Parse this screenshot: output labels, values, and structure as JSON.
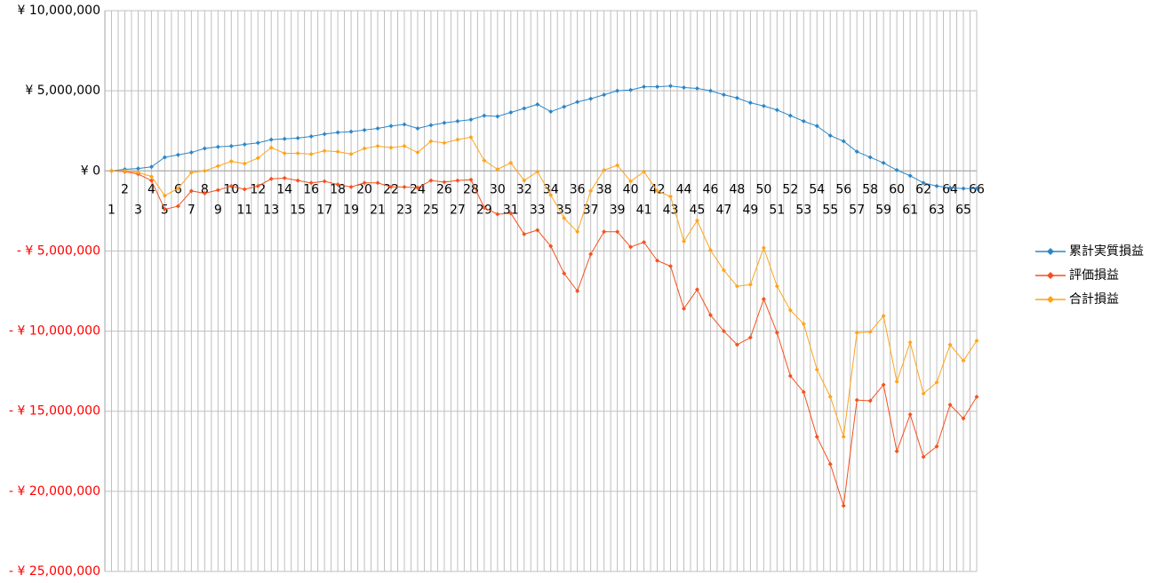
{
  "chart_data": {
    "type": "line",
    "categories": [
      "1",
      "2",
      "3",
      "4",
      "5",
      "6",
      "7",
      "8",
      "9",
      "10",
      "11",
      "12",
      "13",
      "14",
      "15",
      "16",
      "17",
      "18",
      "19",
      "20",
      "21",
      "22",
      "23",
      "24",
      "25",
      "26",
      "27",
      "28",
      "29",
      "30",
      "31",
      "32",
      "33",
      "34",
      "35",
      "36",
      "37",
      "38",
      "39",
      "40",
      "41",
      "42",
      "43",
      "44",
      "45",
      "46",
      "47",
      "48",
      "49",
      "50",
      "51",
      "52",
      "53",
      "54",
      "55",
      "56",
      "57",
      "58",
      "59",
      "60",
      "61",
      "62",
      "63",
      "64",
      "65",
      "66"
    ],
    "series": [
      {
        "name": "累計実質損益",
        "color": "#2a86c8",
        "values": [
          0,
          100000,
          150000,
          250000,
          850000,
          1000000,
          1150000,
          1400000,
          1500000,
          1550000,
          1650000,
          1750000,
          1950000,
          2000000,
          2050000,
          2150000,
          2300000,
          2400000,
          2450000,
          2550000,
          2650000,
          2800000,
          2900000,
          2650000,
          2850000,
          3000000,
          3100000,
          3200000,
          3450000,
          3400000,
          3650000,
          3900000,
          4150000,
          3700000,
          4000000,
          4300000,
          4500000,
          4750000,
          5000000,
          5050000,
          5250000,
          5250000,
          5300000,
          5200000,
          5150000,
          5000000,
          4750000,
          4550000,
          4250000,
          4050000,
          3800000,
          3450000,
          3100000,
          2800000,
          2200000,
          1850000,
          1200000,
          850000,
          500000,
          50000,
          -300000,
          -750000,
          -950000,
          -1050000,
          -1100000,
          -1100000
        ]
      },
      {
        "name": "評価損益",
        "color": "#f4511e",
        "values": [
          0,
          -50000,
          -200000,
          -600000,
          -2400000,
          -2200000,
          -1250000,
          -1400000,
          -1200000,
          -950000,
          -1150000,
          -950000,
          -500000,
          -450000,
          -600000,
          -750000,
          -650000,
          -850000,
          -1000000,
          -750000,
          -750000,
          -1000000,
          -1000000,
          -1050000,
          -600000,
          -700000,
          -600000,
          -550000,
          -2300000,
          -2700000,
          -2650000,
          -3950000,
          -3700000,
          -4700000,
          -6400000,
          -7500000,
          -5200000,
          -3800000,
          -3800000,
          -4750000,
          -4450000,
          -5600000,
          -5950000,
          -8600000,
          -7400000,
          -9000000,
          -10000000,
          -10850000,
          -10400000,
          -8000000,
          -10100000,
          -12800000,
          -13800000,
          -16600000,
          -18300000,
          -20900000,
          -14300000,
          -14350000,
          -13350000,
          -17500000,
          -15200000,
          -17850000,
          -17200000,
          -14600000,
          -15450000,
          -14100000
        ]
      },
      {
        "name": "合計損益",
        "color": "#ffa31a",
        "values": [
          0,
          0,
          -100000,
          -350000,
          -1550000,
          -1100000,
          -100000,
          0,
          300000,
          600000,
          450000,
          800000,
          1450000,
          1100000,
          1100000,
          1050000,
          1250000,
          1200000,
          1050000,
          1400000,
          1550000,
          1450000,
          1550000,
          1150000,
          1850000,
          1750000,
          1950000,
          2100000,
          650000,
          100000,
          500000,
          -600000,
          -50000,
          -1500000,
          -2950000,
          -3800000,
          -1250000,
          50000,
          350000,
          -650000,
          -50000,
          -1250000,
          -1600000,
          -4400000,
          -3100000,
          -4950000,
          -6200000,
          -7200000,
          -7100000,
          -4800000,
          -7200000,
          -8700000,
          -9550000,
          -12400000,
          -14100000,
          -16600000,
          -10100000,
          -10050000,
          -9050000,
          -13150000,
          -10700000,
          -13900000,
          -13200000,
          -10850000,
          -11850000,
          -10600000
        ]
      }
    ],
    "ylim": [
      -25000000,
      10000000
    ],
    "yticks": [
      {
        "value": -25000000,
        "label": "- ¥ 25,000,000"
      },
      {
        "value": -20000000,
        "label": "- ¥ 20,000,000"
      },
      {
        "value": -15000000,
        "label": "- ¥ 15,000,000"
      },
      {
        "value": -10000000,
        "label": "- ¥ 10,000,000"
      },
      {
        "value": -5000000,
        "label": "- ¥ 5,000,000"
      },
      {
        "value": 0,
        "label": "¥ 0"
      },
      {
        "value": 5000000,
        "label": "¥ 5,000,000"
      },
      {
        "value": 10000000,
        "label": "¥ 10,000,000"
      }
    ],
    "negative_tick_color": "#ff0000",
    "grid": true,
    "legend": "right"
  }
}
